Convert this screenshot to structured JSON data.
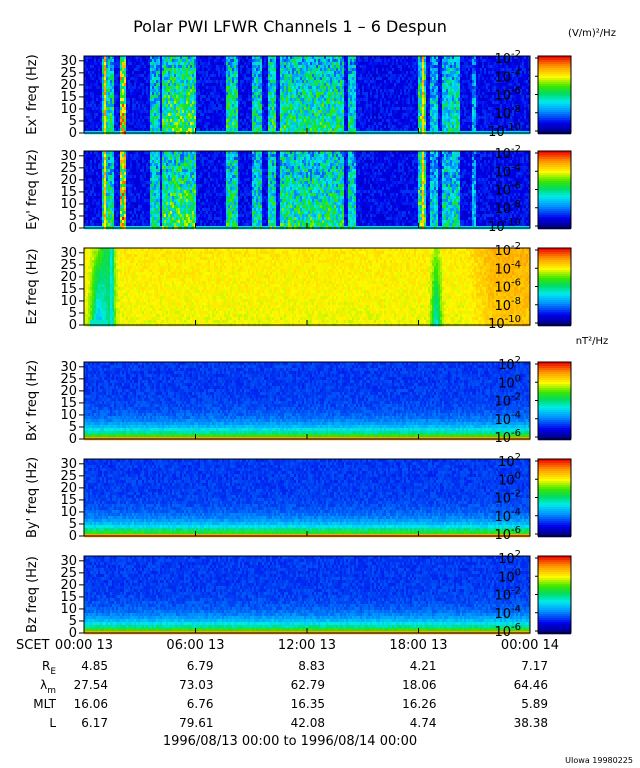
{
  "header": {
    "title": "Polar PWI LFWR Channels 1 – 6 Despun",
    "units_e": "(V/m)²/Hz",
    "units_b": "nT²/Hz"
  },
  "chart_data": {
    "type": "heatmap",
    "title": "Polar PWI LFWR Channels 1 – 6 Despun",
    "time_range": "1996/08/13 00:00 to 1996/08/14 00:00",
    "x_ticks": [
      "00:00 13",
      "06:00 13",
      "12:00 13",
      "18:00 13",
      "00:00 14"
    ],
    "x_tick_hours": [
      0,
      6,
      12,
      18,
      24
    ],
    "xlim_hours": [
      0,
      24
    ],
    "y_ticks": [
      "0",
      "5",
      "10",
      "15",
      "20",
      "25",
      "30"
    ],
    "y_tick_values": [
      0,
      5,
      10,
      15,
      20,
      25,
      30
    ],
    "ylim": [
      0,
      32
    ],
    "panels": [
      {
        "ylabel": "Ex' freq (Hz)",
        "kind": "E",
        "cb_exponents": [
          "-2",
          "-4",
          "-6",
          "-8",
          "-10"
        ]
      },
      {
        "ylabel": "Ey' freq (Hz)",
        "kind": "E",
        "cb_exponents": [
          "-2",
          "-4",
          "-6",
          "-8",
          "-10"
        ]
      },
      {
        "ylabel": "Ez freq (Hz)",
        "kind": "Ez",
        "cb_exponents": [
          "-2",
          "-4",
          "-6",
          "-8",
          "-10"
        ]
      },
      {
        "ylabel": "Bx' freq (Hz)",
        "kind": "B",
        "cb_exponents": [
          "2",
          "0",
          "-2",
          "-4",
          "-6"
        ]
      },
      {
        "ylabel": "By' freq (Hz)",
        "kind": "B",
        "cb_exponents": [
          "2",
          "0",
          "-2",
          "-4",
          "-6"
        ]
      },
      {
        "ylabel": "Bz freq (Hz)",
        "kind": "B",
        "cb_exponents": [
          "2",
          "0",
          "-2",
          "-4",
          "-6"
        ]
      }
    ],
    "colorbar_base": "10",
    "ephemeris_label": "SCET",
    "ephemeris": [
      {
        "label": "R",
        "sub": "E",
        "values": [
          "4.85",
          "6.79",
          "8.83",
          "4.21",
          "7.17"
        ]
      },
      {
        "label": "λ",
        "sub": "m",
        "values": [
          "27.54",
          "73.03",
          "62.79",
          "18.06",
          "64.46"
        ]
      },
      {
        "label": "MLT",
        "sub": "",
        "values": [
          "16.06",
          "6.76",
          "16.35",
          "16.26",
          "5.89"
        ]
      },
      {
        "label": "L",
        "sub": "",
        "values": [
          "6.17",
          "79.61",
          "42.08",
          "4.74",
          "38.38"
        ]
      }
    ]
  },
  "footer": {
    "credit": "UIowa 19980225"
  }
}
